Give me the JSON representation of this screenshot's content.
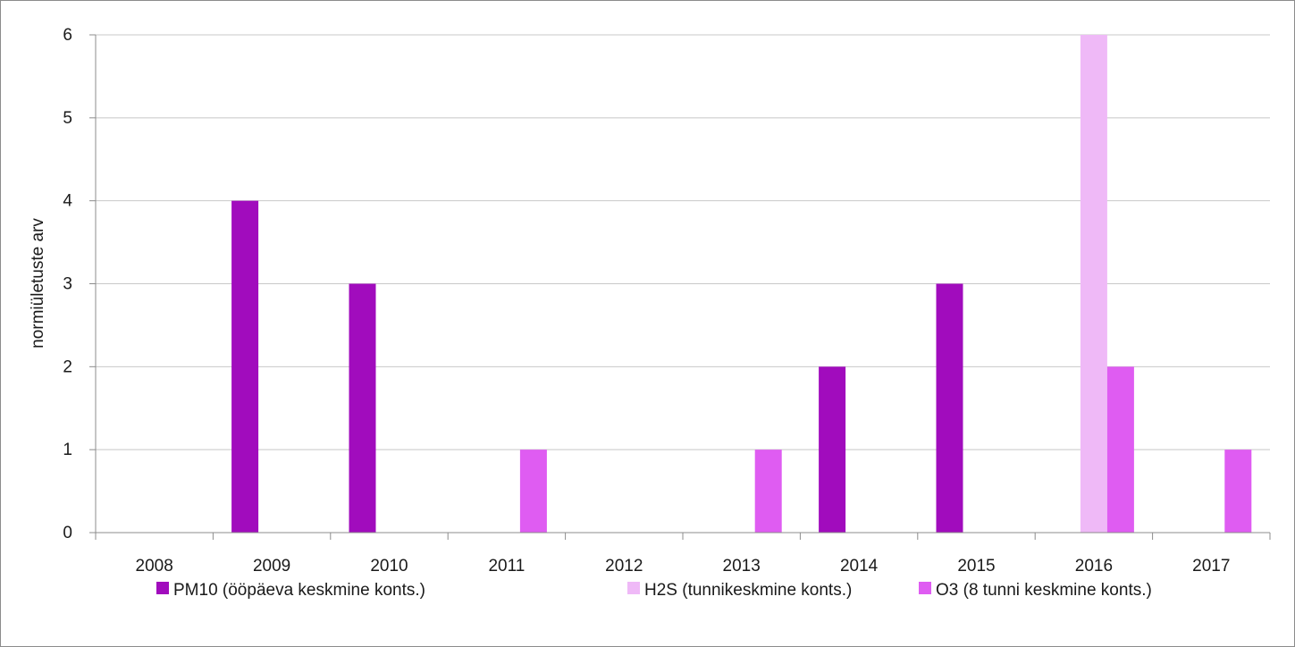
{
  "chart_data": {
    "type": "bar",
    "title": "",
    "xlabel": "",
    "ylabel": "normiületuste arv",
    "categories": [
      "2008",
      "2009",
      "2010",
      "2011",
      "2012",
      "2013",
      "2014",
      "2015",
      "2016",
      "2017"
    ],
    "ylim": [
      0,
      6
    ],
    "yticks": [
      0,
      1,
      2,
      3,
      4,
      5,
      6
    ],
    "grid": true,
    "legend_position": "bottom",
    "series": [
      {
        "name": "PM10 (ööpäeva keskmine konts.)",
        "color": "#a10cbd",
        "values": [
          0,
          4,
          3,
          0,
          0,
          0,
          2,
          3,
          0,
          0
        ]
      },
      {
        "name": "H2S (tunnikeskmine konts.)",
        "color": "#efb9f7",
        "values": [
          0,
          0,
          0,
          0,
          0,
          0,
          0,
          0,
          6,
          0
        ]
      },
      {
        "name": "O3 (8 tunni keskmine konts.)",
        "color": "#df5cf2",
        "values": [
          0,
          0,
          0,
          1,
          0,
          1,
          0,
          0,
          2,
          1
        ]
      }
    ]
  }
}
